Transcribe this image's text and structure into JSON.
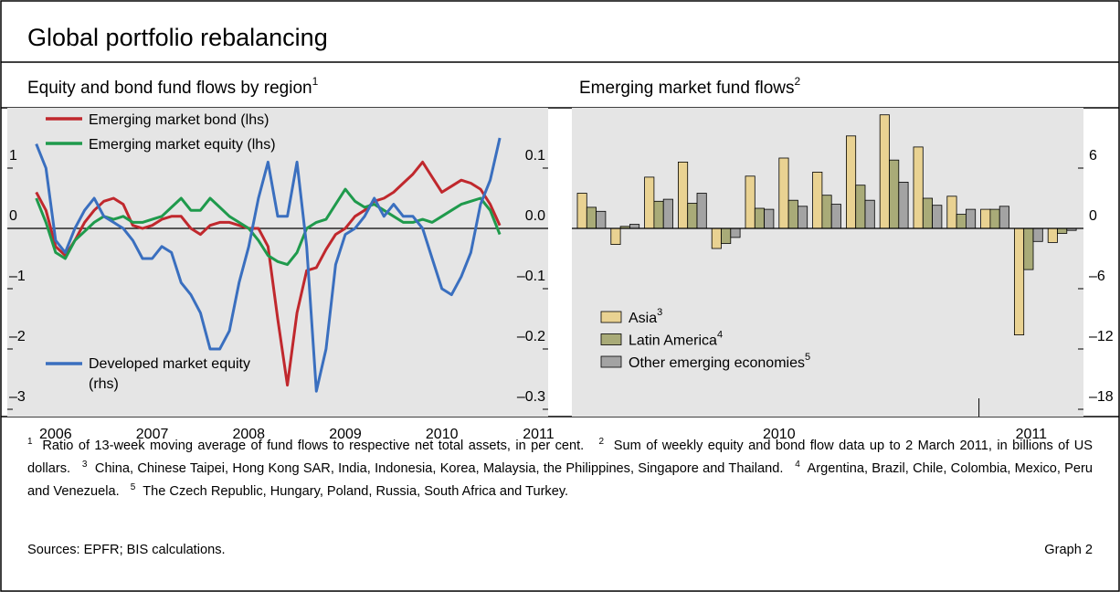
{
  "title": "Global portfolio rebalancing",
  "chart_data": [
    {
      "type": "line",
      "subtitle": "Equity and bond fund flows by region",
      "subtitle_note": "1",
      "x": [
        2006.3,
        2006.4,
        2006.5,
        2006.6,
        2006.7,
        2006.8,
        2006.9,
        2007.0,
        2007.1,
        2007.2,
        2007.3,
        2007.4,
        2007.5,
        2007.6,
        2007.7,
        2007.8,
        2007.9,
        2008.0,
        2008.1,
        2008.2,
        2008.3,
        2008.4,
        2008.5,
        2008.6,
        2008.7,
        2008.8,
        2008.9,
        2009.0,
        2009.1,
        2009.2,
        2009.3,
        2009.4,
        2009.5,
        2009.6,
        2009.7,
        2009.8,
        2009.9,
        2010.0,
        2010.1,
        2010.2,
        2010.3,
        2010.4,
        2010.5,
        2010.6,
        2010.7,
        2010.8,
        2010.9,
        2011.0,
        2011.1
      ],
      "xlim": [
        2006,
        2011.6
      ],
      "xticks": [
        {
          "value": 2006.5,
          "label": "2006"
        },
        {
          "value": 2007.5,
          "label": "2007"
        },
        {
          "value": 2008.5,
          "label": "2008"
        },
        {
          "value": 2009.5,
          "label": "2009"
        },
        {
          "value": 2010.5,
          "label": "2010"
        },
        {
          "value": 2011.5,
          "label": "2011"
        }
      ],
      "ylim": [
        -3,
        2
      ],
      "yticks": [
        {
          "value": -3,
          "label": "–3"
        },
        {
          "value": -2,
          "label": "–2"
        },
        {
          "value": -1,
          "label": "–1"
        },
        0,
        1
      ],
      "y2lim": [
        -0.3,
        0.2
      ],
      "y2ticks": [
        {
          "value": -0.3,
          "label": "–0.3"
        },
        {
          "value": -0.2,
          "label": "–0.2"
        },
        {
          "value": -0.1,
          "label": "–0.1"
        },
        {
          "value": 0,
          "label": "0.0"
        },
        0.1
      ],
      "series": [
        {
          "name": "Emerging market bond (lhs)",
          "color": "#c0282d",
          "axis": "y",
          "values": [
            0.6,
            0.3,
            -0.3,
            -0.45,
            -0.2,
            0.1,
            0.3,
            0.45,
            0.5,
            0.4,
            0.05,
            0.0,
            0.05,
            0.15,
            0.2,
            0.2,
            0.0,
            -0.1,
            0.05,
            0.1,
            0.1,
            0.05,
            0.0,
            0.0,
            -0.3,
            -1.5,
            -2.6,
            -1.4,
            -0.7,
            -0.65,
            -0.35,
            -0.1,
            0.0,
            0.2,
            0.3,
            0.45,
            0.5,
            0.6,
            0.75,
            0.9,
            1.1,
            0.85,
            0.6,
            0.7,
            0.8,
            0.75,
            0.65,
            0.4,
            0.05
          ]
        },
        {
          "name": "Emerging market equity (lhs)",
          "color": "#1f9a4c",
          "axis": "y",
          "values": [
            0.5,
            0.1,
            -0.4,
            -0.5,
            -0.2,
            -0.05,
            0.1,
            0.2,
            0.15,
            0.2,
            0.1,
            0.1,
            0.15,
            0.2,
            0.35,
            0.5,
            0.3,
            0.3,
            0.5,
            0.35,
            0.2,
            0.1,
            0.0,
            -0.2,
            -0.45,
            -0.55,
            -0.6,
            -0.4,
            0.0,
            0.1,
            0.15,
            0.4,
            0.65,
            0.45,
            0.35,
            0.4,
            0.3,
            0.2,
            0.1,
            0.1,
            0.15,
            0.1,
            0.2,
            0.3,
            0.4,
            0.45,
            0.5,
            0.3,
            -0.1
          ]
        },
        {
          "name": "Developed market equity (rhs)",
          "color": "#3a6fbf",
          "axis": "y2",
          "values": [
            0.14,
            0.1,
            -0.02,
            -0.04,
            0,
            0.03,
            0.05,
            0.02,
            0.01,
            0,
            -0.02,
            -0.05,
            -0.05,
            -0.03,
            -0.04,
            -0.09,
            -0.11,
            -0.14,
            -0.2,
            -0.2,
            -0.17,
            -0.09,
            -0.03,
            0.05,
            0.11,
            0.02,
            0.02,
            0.11,
            -0.03,
            -0.27,
            -0.2,
            -0.06,
            -0.01,
            0,
            0.02,
            0.05,
            0.02,
            0.04,
            0.02,
            0.02,
            0,
            -0.05,
            -0.1,
            -0.11,
            -0.08,
            -0.04,
            0.04,
            0.08,
            0.15
          ]
        }
      ]
    },
    {
      "type": "bar",
      "subtitle": "Emerging market fund flows",
      "subtitle_note": "2",
      "categories": [
        null,
        null,
        null,
        null,
        null,
        null,
        null,
        null,
        null,
        null,
        null,
        null,
        null,
        null,
        null
      ],
      "year_labels": [
        "2010",
        "2011"
      ],
      "ylim": [
        -18,
        12
      ],
      "yticks": [
        {
          "value": -18,
          "label": "–18"
        },
        {
          "value": -12,
          "label": "–12"
        },
        {
          "value": -6,
          "label": "–6"
        },
        0,
        6
      ],
      "series": [
        {
          "name": "Asia",
          "note": "3",
          "color": "#e9d292",
          "values": [
            3.5,
            -1.6,
            5.1,
            6.6,
            -2.0,
            5.2,
            7.0,
            5.6,
            9.2,
            11.3,
            8.1,
            3.2,
            1.9,
            -10.6,
            -1.4
          ]
        },
        {
          "name": "Latin America",
          "note": "4",
          "color": "#a9ab78",
          "values": [
            2.1,
            0.2,
            2.7,
            2.5,
            -1.5,
            2.0,
            2.8,
            3.3,
            4.3,
            6.8,
            3.0,
            1.4,
            1.9,
            -4.1,
            -0.5
          ]
        },
        {
          "name": "Other emerging economies",
          "note": "5",
          "color": "#a3a3a3",
          "values": [
            1.7,
            0.4,
            2.9,
            3.5,
            -0.9,
            1.9,
            2.2,
            2.4,
            2.8,
            4.6,
            2.3,
            1.9,
            2.2,
            -1.3,
            -0.2
          ]
        }
      ]
    }
  ],
  "footnotes": [
    {
      "mark": "1",
      "text": "Ratio of 13-week moving average of fund flows to respective net total assets, in per cent."
    },
    {
      "mark": "2",
      "text": "Sum of weekly equity and bond flow data up to 2 March 2011, in billions of US dollars."
    },
    {
      "mark": "3",
      "text": "China, Chinese Taipei, Hong Kong SAR, India, Indonesia, Korea, Malaysia, the Philippines, Singapore and Thailand."
    },
    {
      "mark": "4",
      "text": "Argentina, Brazil, Chile, Colombia, Mexico, Peru and Venezuela."
    },
    {
      "mark": "5",
      "text": "The Czech Republic, Hungary, Poland, Russia, South Africa and Turkey."
    }
  ],
  "sources": "Sources: EPFR; BIS calculations.",
  "graph_label": "Graph 2"
}
